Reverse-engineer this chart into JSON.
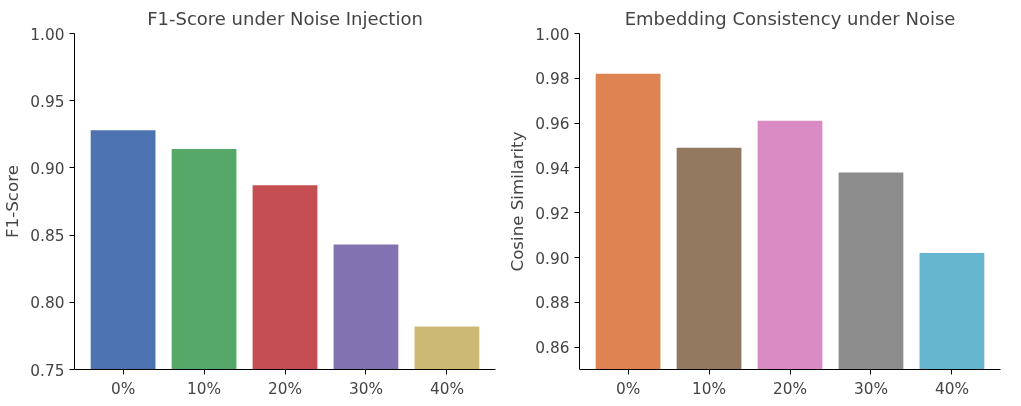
{
  "chart_data": [
    {
      "type": "bar",
      "title": "F1-Score under Noise Injection",
      "ylabel": "F1-Score",
      "categories": [
        "0%",
        "10%",
        "20%",
        "30%",
        "40%"
      ],
      "values": [
        0.928,
        0.914,
        0.887,
        0.843,
        0.782
      ],
      "colors": [
        "#4c72b0",
        "#55a868",
        "#c44e52",
        "#8172b2",
        "#ccb974"
      ],
      "ylim": [
        0.75,
        1.0
      ],
      "yticks": [
        {
          "value": 0.75,
          "label": "0.75"
        },
        {
          "value": 0.8,
          "label": "0.80"
        },
        {
          "value": 0.85,
          "label": "0.85"
        },
        {
          "value": 0.9,
          "label": "0.90"
        },
        {
          "value": 0.95,
          "label": "0.95"
        },
        {
          "value": 1.0,
          "label": "1.00"
        }
      ],
      "grid": false
    },
    {
      "type": "bar",
      "title": "Embedding Consistency under Noise",
      "ylabel": "Cosine Similarity",
      "categories": [
        "0%",
        "10%",
        "20%",
        "30%",
        "40%"
      ],
      "values": [
        0.982,
        0.949,
        0.961,
        0.938,
        0.902
      ],
      "colors": [
        "#dd8452",
        "#937860",
        "#da8bc3",
        "#8c8c8c",
        "#64b5cd"
      ],
      "ylim": [
        0.85,
        1.0
      ],
      "yticks": [
        {
          "value": 0.86,
          "label": "0.86"
        },
        {
          "value": 0.88,
          "label": "0.88"
        },
        {
          "value": 0.9,
          "label": "0.90"
        },
        {
          "value": 0.92,
          "label": "0.92"
        },
        {
          "value": 0.94,
          "label": "0.94"
        },
        {
          "value": 0.96,
          "label": "0.96"
        },
        {
          "value": 0.98,
          "label": "0.98"
        },
        {
          "value": 1.0,
          "label": "1.00"
        }
      ],
      "grid": false
    }
  ]
}
